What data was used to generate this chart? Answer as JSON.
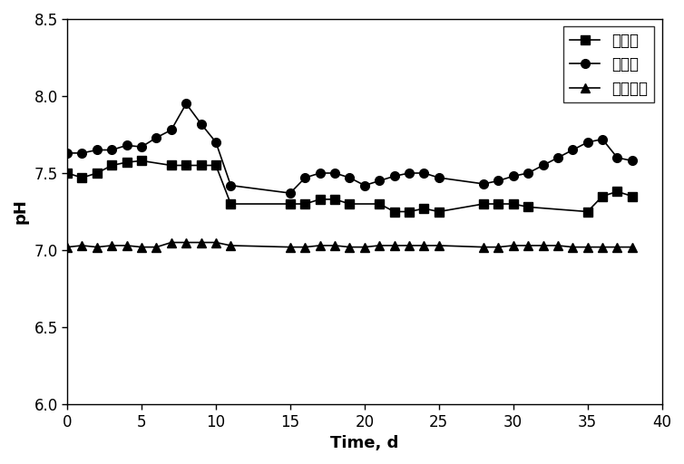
{
  "title": "",
  "xlabel": "Time, d",
  "ylabel": "pH",
  "xlim": [
    0,
    40
  ],
  "ylim": [
    6.0,
    8.5
  ],
  "yticks": [
    6.0,
    6.5,
    7.0,
    7.5,
    8.0,
    8.5
  ],
  "xticks": [
    0,
    5,
    10,
    15,
    20,
    25,
    30,
    35,
    40
  ],
  "series": [
    {
      "label": "유입수",
      "marker": "s",
      "x": [
        0,
        1,
        2,
        3,
        4,
        5,
        7,
        8,
        9,
        10,
        11,
        15,
        16,
        17,
        18,
        19,
        21,
        22,
        23,
        24,
        25,
        28,
        29,
        30,
        31,
        35,
        36,
        37,
        38
      ],
      "y": [
        7.5,
        7.47,
        7.5,
        7.55,
        7.57,
        7.58,
        7.55,
        7.55,
        7.55,
        7.55,
        7.3,
        7.3,
        7.3,
        7.33,
        7.33,
        7.3,
        7.3,
        7.25,
        7.25,
        7.27,
        7.25,
        7.3,
        7.3,
        7.3,
        7.28,
        7.25,
        7.35,
        7.38,
        7.35
      ]
    },
    {
      "label": "혁기조",
      "marker": "o",
      "x": [
        0,
        1,
        2,
        3,
        4,
        5,
        6,
        7,
        8,
        9,
        10,
        11,
        15,
        16,
        17,
        18,
        19,
        20,
        21,
        22,
        23,
        24,
        25,
        28,
        29,
        30,
        31,
        32,
        33,
        34,
        35,
        36,
        37,
        38
      ],
      "y": [
        7.63,
        7.63,
        7.65,
        7.65,
        7.68,
        7.67,
        7.73,
        7.78,
        7.95,
        7.82,
        7.7,
        7.42,
        7.37,
        7.47,
        7.5,
        7.5,
        7.47,
        7.42,
        7.45,
        7.48,
        7.5,
        7.5,
        7.47,
        7.43,
        7.45,
        7.48,
        7.5,
        7.55,
        7.6,
        7.65,
        7.7,
        7.72,
        7.6,
        7.58
      ]
    },
    {
      "label": "질산화조",
      "marker": "^",
      "x": [
        0,
        1,
        2,
        3,
        4,
        5,
        6,
        7,
        8,
        9,
        10,
        11,
        15,
        16,
        17,
        18,
        19,
        20,
        21,
        22,
        23,
        24,
        25,
        28,
        29,
        30,
        31,
        32,
        33,
        34,
        35,
        36,
        37,
        38
      ],
      "y": [
        7.02,
        7.03,
        7.02,
        7.03,
        7.03,
        7.02,
        7.02,
        7.05,
        7.05,
        7.05,
        7.05,
        7.03,
        7.02,
        7.02,
        7.03,
        7.03,
        7.02,
        7.02,
        7.03,
        7.03,
        7.03,
        7.03,
        7.03,
        7.02,
        7.02,
        7.03,
        7.03,
        7.03,
        7.03,
        7.02,
        7.02,
        7.02,
        7.02,
        7.02
      ]
    }
  ],
  "line_color": "#000000",
  "marker_color": "#000000",
  "marker_size": 7,
  "linewidth": 1.2,
  "legend_loc": "upper right",
  "legend_fontsize": 12,
  "axis_fontsize": 13,
  "tick_fontsize": 12,
  "background_color": "#ffffff"
}
